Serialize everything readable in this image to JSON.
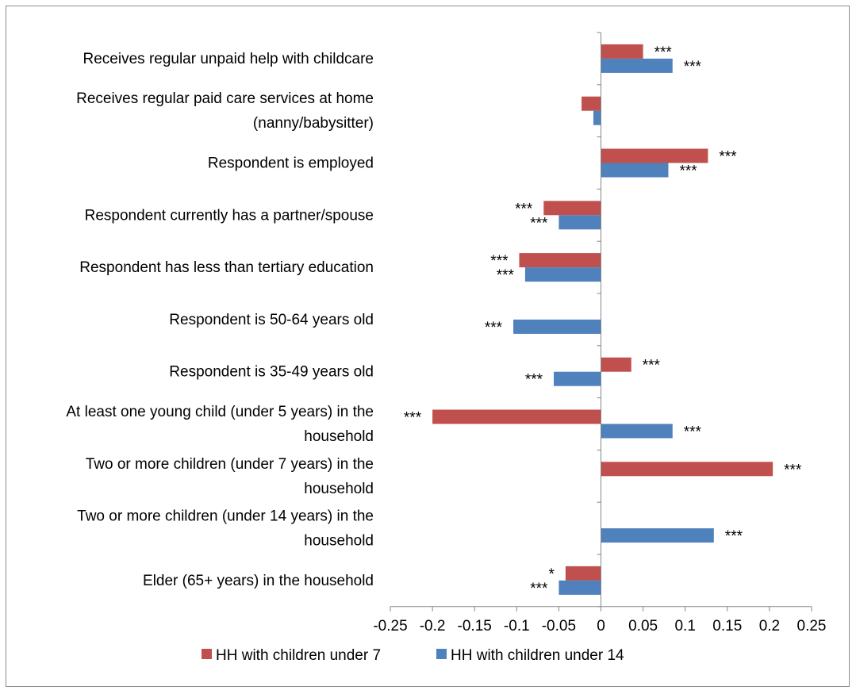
{
  "chart_data": {
    "type": "bar",
    "orientation": "horizontal",
    "categories": [
      [
        "Receives regular unpaid help with childcare"
      ],
      [
        "Receives regular paid care services at home",
        "(nanny/babysitter)"
      ],
      [
        "Respondent is employed"
      ],
      [
        "Respondent currently has a partner/spouse"
      ],
      [
        "Respondent has less than tertiary education"
      ],
      [
        "Respondent is 50-64 years old"
      ],
      [
        "Respondent is 35-49 years old"
      ],
      [
        "At least one young child (under 5 years) in the",
        "household"
      ],
      [
        "Two or more children (under 7 years) in the",
        "household"
      ],
      [
        "Two or more children (under 14 years) in the",
        "household"
      ],
      [
        "Elder (65+ years) in the household"
      ]
    ],
    "series": [
      {
        "name": "HH with children under 7",
        "color": "#c0504d",
        "values": [
          0.05,
          -0.023,
          0.127,
          -0.068,
          -0.097,
          null,
          0.036,
          -0.2,
          0.204,
          null,
          -0.042
        ],
        "significance": [
          "***",
          "",
          "***",
          "***",
          "***",
          "",
          "***",
          "***",
          "***",
          "",
          "*"
        ]
      },
      {
        "name": "HH with children under 14",
        "color": "#4f81bd",
        "values": [
          0.085,
          -0.009,
          0.08,
          -0.05,
          -0.09,
          -0.104,
          -0.056,
          0.085,
          null,
          0.134,
          -0.05
        ],
        "significance": [
          "***",
          "",
          "***",
          "***",
          "***",
          "***",
          "***",
          "***",
          "",
          "***",
          "***"
        ]
      }
    ],
    "xlim": [
      -0.25,
      0.25
    ],
    "xticks": [
      -0.25,
      -0.2,
      -0.15,
      -0.1,
      -0.05,
      0,
      0.05,
      0.1,
      0.15,
      0.2,
      0.25
    ],
    "xtick_labels": [
      "-0.25",
      "-0.2",
      "-0.15",
      "-0.1",
      "-0.05",
      "0",
      "0.05",
      "0.1",
      "0.15",
      "0.2",
      "0.25"
    ],
    "legend_position": "bottom",
    "grid": false
  }
}
